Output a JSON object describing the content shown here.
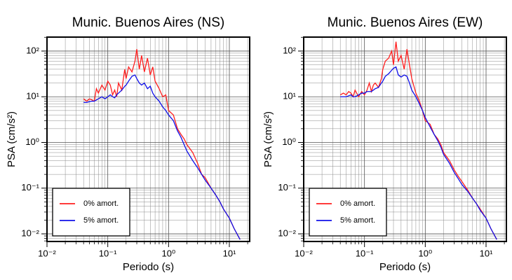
{
  "chart_data": [
    {
      "type": "line",
      "title": "Munic. Buenos Aires (NS)",
      "x_label": "Periodo (s)",
      "y_label": "PSA (cm/s²)",
      "log_x": true,
      "log_y": true,
      "grid": true,
      "minor_multipliers": [
        2,
        3,
        4,
        5,
        6,
        7,
        8,
        9
      ],
      "legend": "lower left",
      "xlim": [
        0.01,
        21.6
      ],
      "ylim": [
        0.0068,
        202
      ],
      "xticks": [
        {
          "value": 0.01,
          "label": "10⁻²"
        },
        {
          "value": 0.1,
          "label": "10⁻¹"
        },
        {
          "value": 1,
          "label": "10⁰"
        },
        {
          "value": 10,
          "label": "10¹"
        }
      ],
      "yticks": [
        {
          "value": 0.01,
          "label": "10⁻²"
        },
        {
          "value": 0.1,
          "label": "10⁻¹"
        },
        {
          "value": 1,
          "label": "10⁰"
        },
        {
          "value": 10,
          "label": "10¹"
        },
        {
          "value": 100,
          "label": "10²"
        }
      ],
      "x": [
        0.04,
        0.045,
        0.05,
        0.055,
        0.06,
        0.065,
        0.07,
        0.08,
        0.09,
        0.1,
        0.11,
        0.12,
        0.13,
        0.14,
        0.15,
        0.17,
        0.19,
        0.2,
        0.22,
        0.25,
        0.28,
        0.3,
        0.33,
        0.36,
        0.4,
        0.45,
        0.5,
        0.55,
        0.6,
        0.7,
        0.8,
        0.9,
        1.0,
        1.2,
        1.4,
        1.6,
        1.8,
        2.0,
        2.5,
        3.0,
        3.5,
        4.0,
        5.0,
        6.0,
        7.0,
        8.0,
        10,
        12,
        15
      ],
      "series": [
        {
          "name": "0% amort.",
          "color": "#ff1f1f",
          "values": [
            9,
            8,
            9,
            8.5,
            8,
            15,
            12,
            18,
            14,
            22,
            18,
            11,
            14,
            10,
            20,
            14,
            40,
            25,
            45,
            35,
            60,
            110,
            40,
            80,
            35,
            70,
            30,
            45,
            22,
            15,
            10,
            11,
            5,
            4,
            2,
            1.5,
            1.2,
            0.9,
            0.6,
            0.35,
            0.2,
            0.17,
            0.1,
            0.07,
            0.05,
            0.035,
            0.022,
            0.013,
            0.0075
          ]
        },
        {
          "name": "5% amort.",
          "color": "#1010e8",
          "values": [
            7.5,
            7.5,
            7.8,
            8,
            8,
            8.5,
            9,
            10,
            9,
            10,
            11,
            10,
            9.5,
            11,
            12,
            14,
            17,
            18,
            22,
            28,
            30,
            25,
            20,
            18,
            20,
            15,
            17,
            12,
            10,
            8,
            6,
            5,
            4,
            3,
            1.8,
            1.3,
            0.9,
            0.65,
            0.4,
            0.28,
            0.2,
            0.15,
            0.1,
            0.07,
            0.05,
            0.035,
            0.022,
            0.013,
            0.0075
          ]
        }
      ]
    },
    {
      "type": "line",
      "title": "Munic. Buenos Aires (EW)",
      "x_label": "Periodo (s)",
      "y_label": "PSA (cm/s²)",
      "log_x": true,
      "log_y": true,
      "grid": true,
      "minor_multipliers": [
        2,
        3,
        4,
        5,
        6,
        7,
        8,
        9
      ],
      "legend": "lower left",
      "xlim": [
        0.01,
        21.6
      ],
      "ylim": [
        0.0068,
        202
      ],
      "xticks": [
        {
          "value": 0.01,
          "label": "10⁻²"
        },
        {
          "value": 0.1,
          "label": "10⁻¹"
        },
        {
          "value": 1,
          "label": "10⁰"
        },
        {
          "value": 10,
          "label": "10¹"
        }
      ],
      "yticks": [
        {
          "value": 0.01,
          "label": "10⁻²"
        },
        {
          "value": 0.1,
          "label": "10⁻¹"
        },
        {
          "value": 1,
          "label": "10⁰"
        },
        {
          "value": 10,
          "label": "10¹"
        },
        {
          "value": 100,
          "label": "10²"
        }
      ],
      "x": [
        0.04,
        0.045,
        0.05,
        0.055,
        0.06,
        0.065,
        0.07,
        0.08,
        0.09,
        0.1,
        0.11,
        0.12,
        0.13,
        0.14,
        0.15,
        0.17,
        0.19,
        0.2,
        0.22,
        0.25,
        0.28,
        0.3,
        0.33,
        0.36,
        0.4,
        0.45,
        0.5,
        0.55,
        0.6,
        0.7,
        0.8,
        0.9,
        1.0,
        1.2,
        1.4,
        1.6,
        1.8,
        2.0,
        2.5,
        3.0,
        3.5,
        4.0,
        5.0,
        6.0,
        7.0,
        8.0,
        10,
        12,
        15
      ],
      "series": [
        {
          "name": "0% amort.",
          "color": "#ff1f1f",
          "values": [
            11,
            12,
            11,
            13,
            12,
            10,
            14,
            10,
            13,
            11,
            14,
            20,
            13,
            18,
            20,
            16,
            25,
            40,
            60,
            70,
            100,
            50,
            160,
            60,
            80,
            40,
            110,
            50,
            25,
            12,
            8,
            5,
            3,
            2.5,
            1.5,
            1.2,
            0.9,
            0.6,
            0.4,
            0.25,
            0.18,
            0.14,
            0.09,
            0.06,
            0.045,
            0.035,
            0.022,
            0.013,
            0.0075
          ]
        },
        {
          "name": "5% amort.",
          "color": "#1010e8",
          "values": [
            10,
            10,
            10,
            10.5,
            11,
            10,
            10,
            11,
            12,
            12,
            13,
            13,
            13,
            14,
            15,
            16,
            20,
            22,
            28,
            32,
            38,
            42,
            45,
            30,
            27,
            30,
            28,
            20,
            14,
            10,
            7,
            5,
            3.5,
            2.2,
            1.5,
            1.1,
            0.8,
            0.55,
            0.35,
            0.22,
            0.16,
            0.12,
            0.085,
            0.06,
            0.045,
            0.033,
            0.022,
            0.013,
            0.0075
          ]
        }
      ]
    }
  ]
}
